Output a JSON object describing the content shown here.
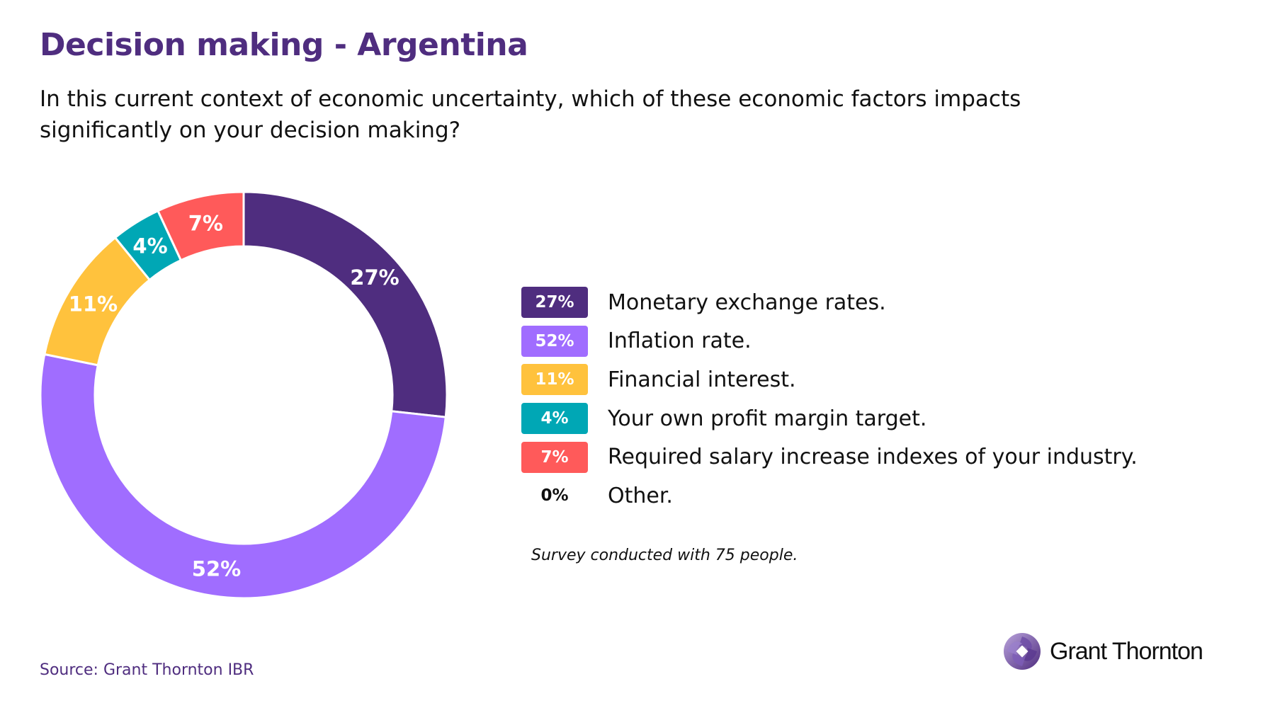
{
  "title": "Decision making - Argentina",
  "subtitle": "In this current context of economic uncertainty, which of these economic factors impacts significantly on your decision making?",
  "chart_data": {
    "type": "pie",
    "variant": "donut",
    "start": "top, clockwise",
    "slices": [
      {
        "label": "Monetary exchange rates.",
        "value": 27,
        "display": "27%",
        "color": "#4f2d7f"
      },
      {
        "label": "Inflation rate.",
        "value": 52,
        "display": "52%",
        "color": "#a06dff"
      },
      {
        "label": "Financial interest.",
        "value": 11,
        "display": "11%",
        "color": "#ffc23d"
      },
      {
        "label": "Your own profit margin target.",
        "value": 4,
        "display": "4%",
        "color": "#00a7b5"
      },
      {
        "label": "Required salary increase indexes of your industry.",
        "value": 7,
        "display": "7%",
        "color": "#ff5a5a"
      },
      {
        "label": "Other.",
        "value": 0,
        "display": "0%",
        "color": null
      }
    ]
  },
  "note": "Survey conducted with 75 people.",
  "source": "Source: Grant Thornton IBR",
  "logo": {
    "text": "Grant Thornton",
    "icon": "grant-thornton-swirl-icon"
  }
}
